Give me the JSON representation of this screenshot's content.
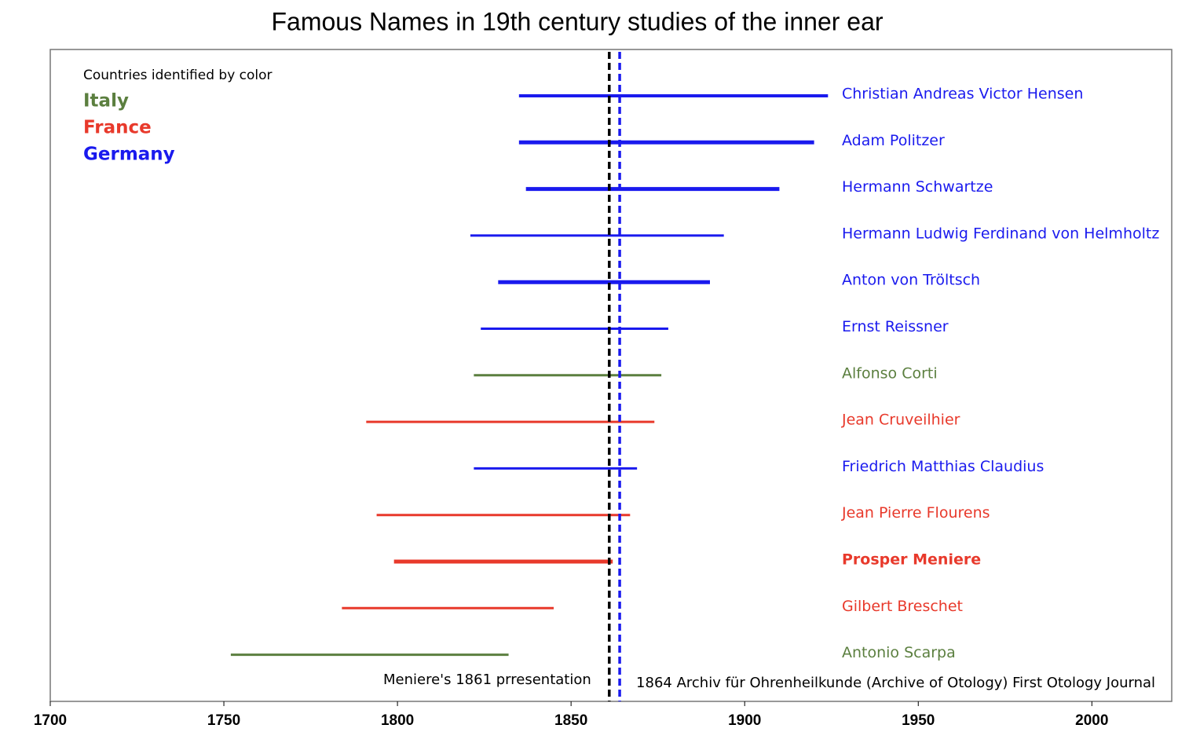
{
  "chart_data": {
    "type": "timeline",
    "title": "Famous Names in 19th century studies of the inner ear",
    "xlim": [
      1700,
      2023
    ],
    "xticks": [
      1700,
      1750,
      1800,
      1850,
      1900,
      1950,
      2000
    ],
    "legend": {
      "title": "Countries identified by color",
      "items": [
        {
          "name": "Italy",
          "color": "#5b7f3f"
        },
        {
          "name": "France",
          "color": "#e8392b"
        },
        {
          "name": "Germany",
          "color": "#1a1aee"
        }
      ]
    },
    "series": [
      {
        "name": "Christian Andreas Victor Hensen",
        "color": "#1a1aee",
        "values": [
          1835,
          1924
        ]
      },
      {
        "name": "Adam Politzer",
        "color": "#1a1aee",
        "values": [
          1835,
          1920
        ]
      },
      {
        "name": "Hermann Schwartze",
        "color": "#1a1aee",
        "values": [
          1837,
          1910
        ]
      },
      {
        "name": "Hermann Ludwig Ferdinand von Helmholtz",
        "color": "#1a1aee",
        "values": [
          1821,
          1894
        ]
      },
      {
        "name": "Anton von Tröltsch",
        "color": "#1a1aee",
        "values": [
          1829,
          1890
        ]
      },
      {
        "name": "Ernst Reissner",
        "color": "#1a1aee",
        "values": [
          1824,
          1878
        ]
      },
      {
        "name": "Alfonso Corti",
        "color": "#5b7f3f",
        "values": [
          1822,
          1876
        ]
      },
      {
        "name": "Jean Cruveilhier",
        "color": "#e8392b",
        "values": [
          1791,
          1874
        ]
      },
      {
        "name": "Friedrich Matthias Claudius",
        "color": "#1a1aee",
        "values": [
          1822,
          1869
        ]
      },
      {
        "name": "Jean Pierre Flourens",
        "color": "#e8392b",
        "values": [
          1794,
          1867
        ]
      },
      {
        "name": "Prosper Meniere",
        "color": "#e8392b",
        "values": [
          1799,
          1862
        ],
        "bold": true
      },
      {
        "name": "Gilbert Breschet",
        "color": "#e8392b",
        "values": [
          1784,
          1845
        ]
      },
      {
        "name": "Antonio Scarpa",
        "color": "#5b7f3f",
        "values": [
          1752,
          1832
        ]
      }
    ],
    "vlines": [
      {
        "value": 1861,
        "color": "#000000",
        "label": "Meniere's 1861 prresentation"
      },
      {
        "value": 1864,
        "color": "#1a1aee",
        "label": "1864 Archiv für Ohrenheilkunde (Archive of Otology) First Otology Journal"
      }
    ]
  }
}
